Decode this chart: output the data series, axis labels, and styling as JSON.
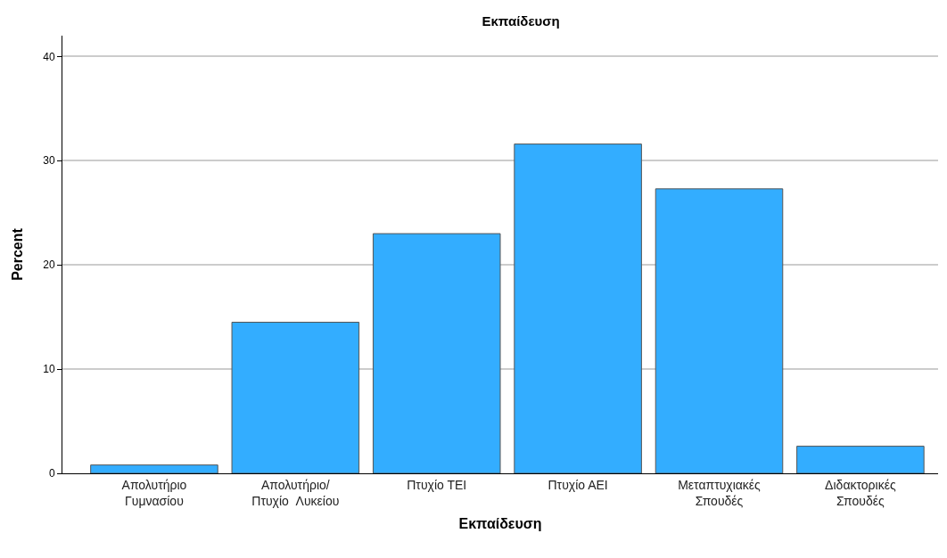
{
  "chart_data": {
    "type": "bar",
    "title": "Εκπαίδευση",
    "xlabel": "Εκπαίδευση",
    "ylabel": "Percent",
    "categories": [
      "Απολυτήριο\nΓυμνασίου",
      "Απολυτήριο/\nΠτυχίο  Λυκείου",
      "Πτυχίο ΤΕΙ",
      "Πτυχίο ΑΕΙ",
      "Μεταπτυχιακές\nΣπουδές",
      "Διδακτορικές\nΣπουδές"
    ],
    "values": [
      0.8,
      14.5,
      23.0,
      31.6,
      27.3,
      2.6
    ],
    "color": "#33adff",
    "ylim": [
      0,
      42
    ],
    "yticks": [
      0,
      10,
      20,
      30,
      40
    ],
    "grid": "y"
  }
}
